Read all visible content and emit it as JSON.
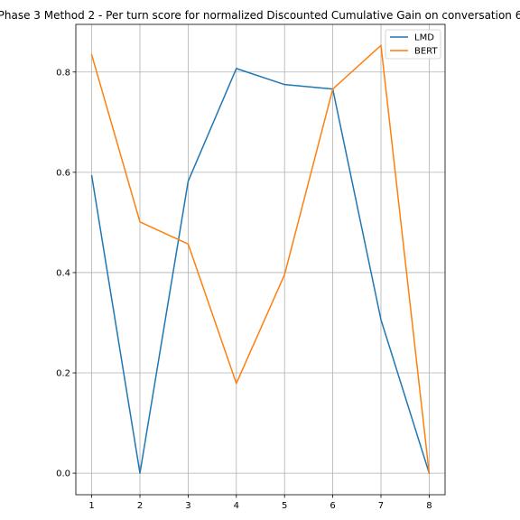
{
  "chart_data": {
    "type": "line",
    "title": "Phase 3 Method 2 - Per turn score for normalized Discounted Cumulative Gain on conversation 6",
    "xlabel": "",
    "ylabel": "",
    "x": [
      1,
      2,
      3,
      4,
      5,
      6,
      7,
      8
    ],
    "x_ticks": [
      "1",
      "2",
      "3",
      "4",
      "5",
      "6",
      "7",
      "8"
    ],
    "y_ticks": [
      "0.0",
      "0.2",
      "0.4",
      "0.6",
      "0.8"
    ],
    "xlim": [
      0.67,
      8.33
    ],
    "ylim": [
      -0.043,
      0.895
    ],
    "grid": true,
    "legend_position": "top-right",
    "series": [
      {
        "name": "LMD",
        "color": "#1f77b4",
        "values": [
          0.593,
          0.0,
          0.582,
          0.807,
          0.775,
          0.766,
          0.306,
          0.0
        ]
      },
      {
        "name": "BERT",
        "color": "#ff7f0e",
        "values": [
          0.834,
          0.501,
          0.457,
          0.179,
          0.396,
          0.766,
          0.853,
          0.0
        ]
      }
    ]
  }
}
